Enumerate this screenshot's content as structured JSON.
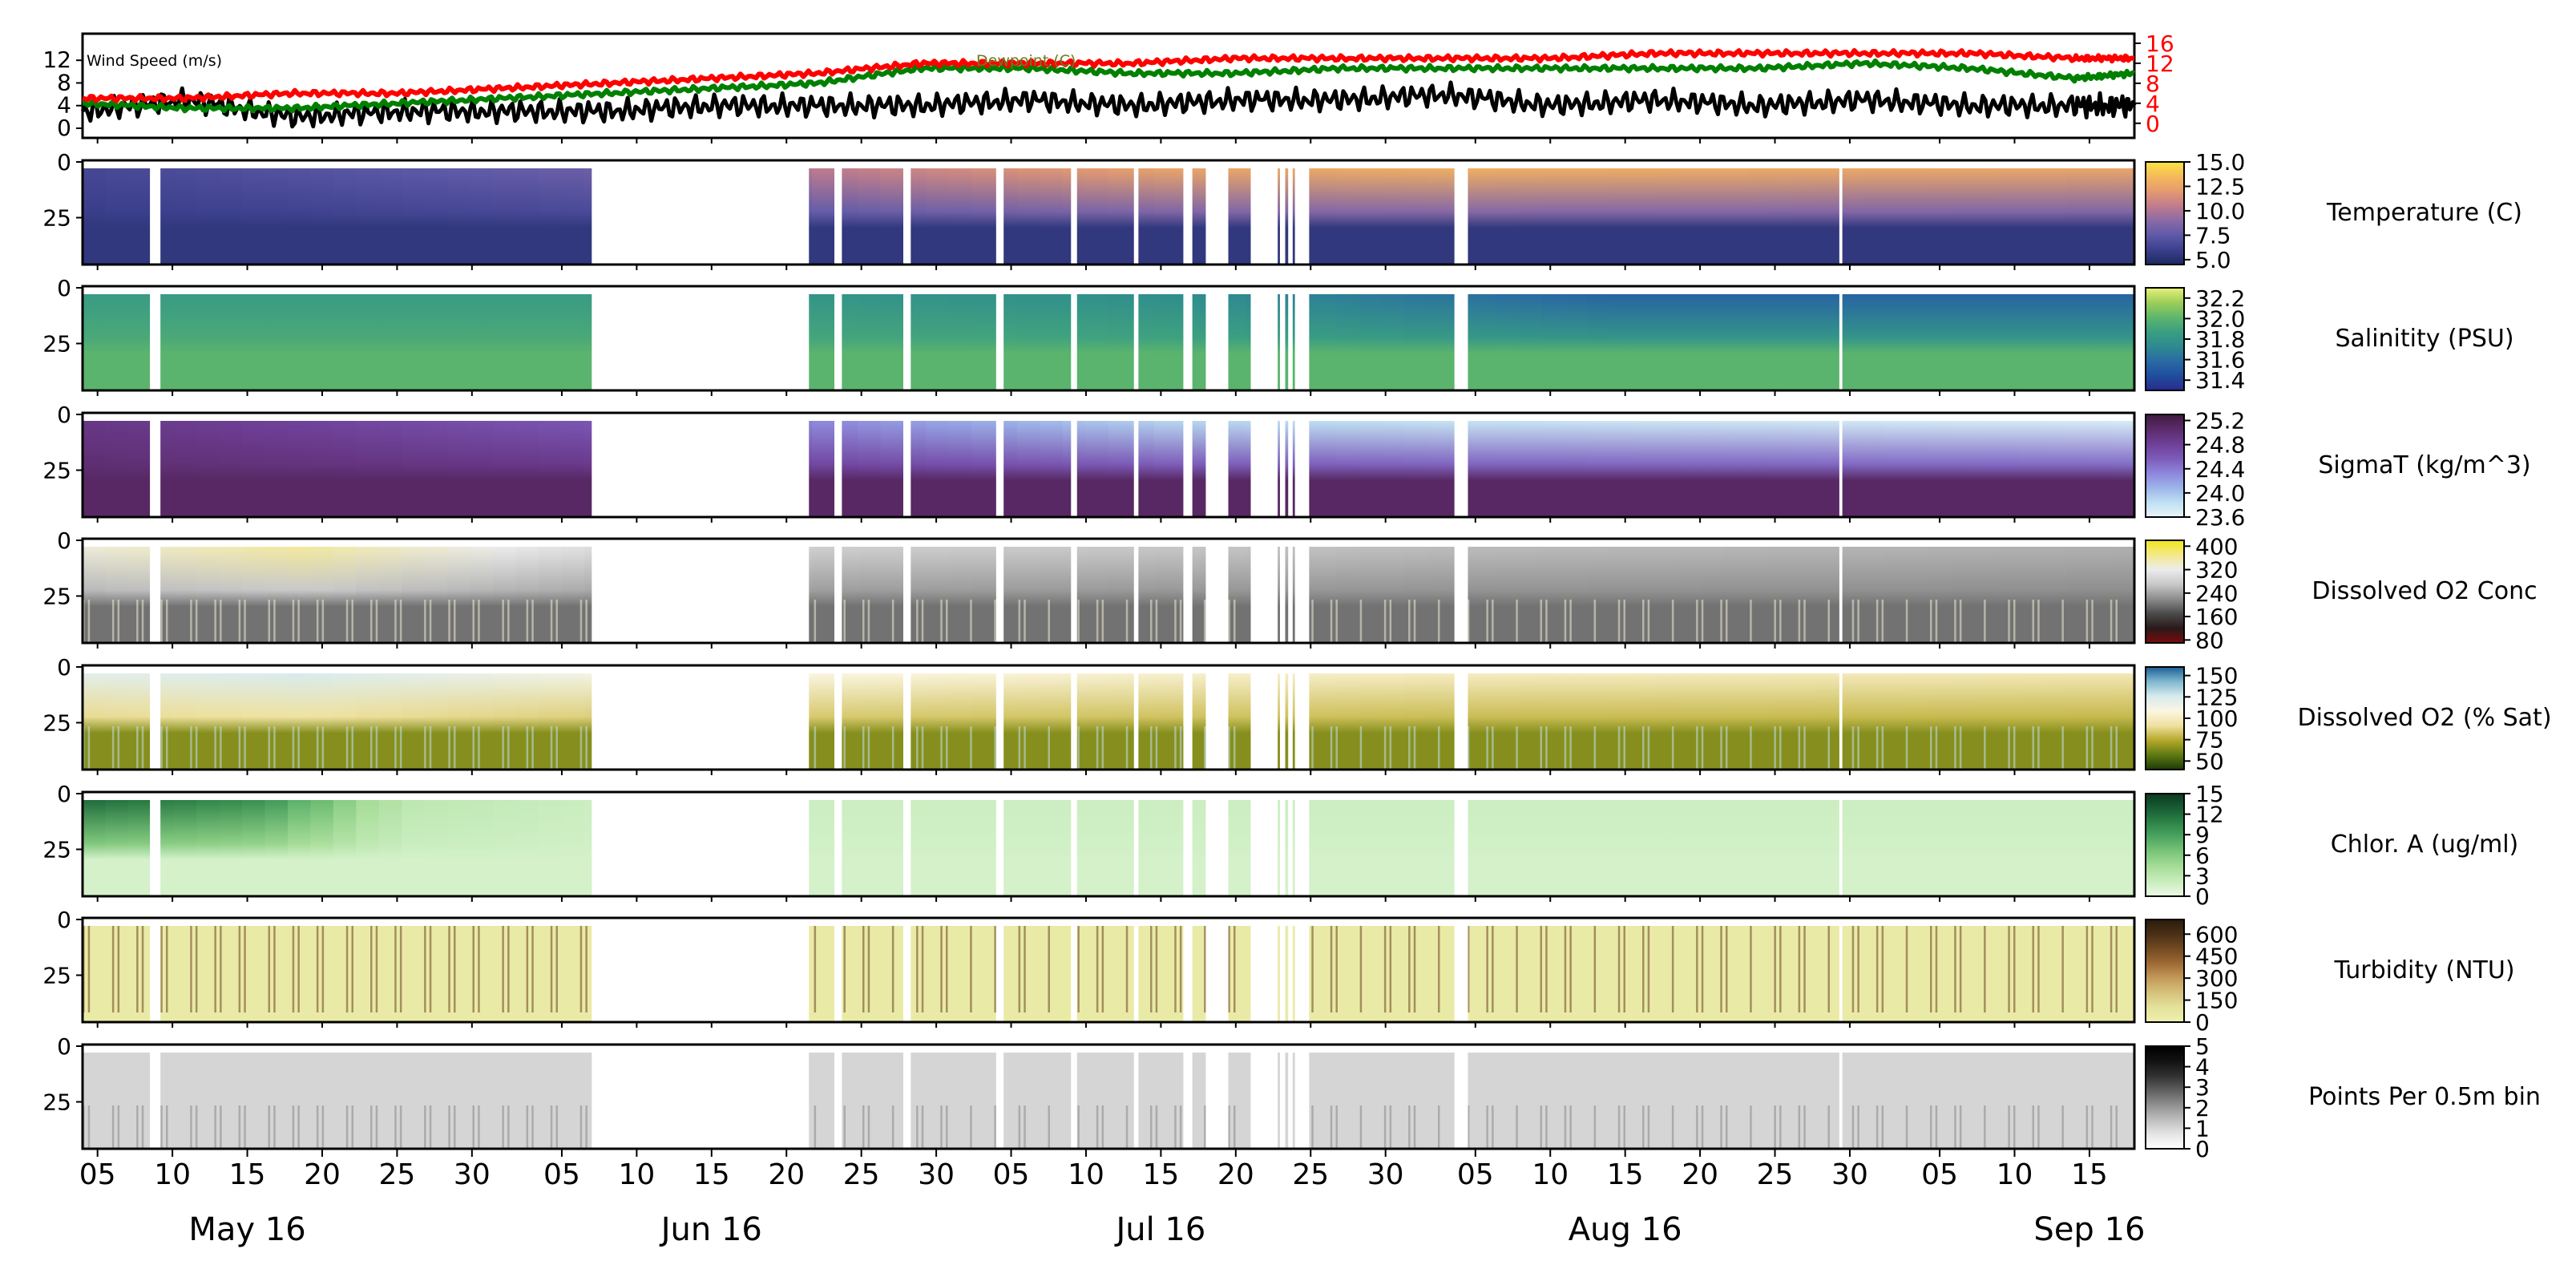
{
  "figure": {
    "date_ticks": [
      "05",
      "10",
      "15",
      "20",
      "25",
      "30",
      "05",
      "10",
      "15",
      "20",
      "25",
      "30",
      "05",
      "10",
      "15",
      "20",
      "25",
      "30",
      "05",
      "10",
      "15",
      "20",
      "25",
      "30",
      "05",
      "10",
      "15"
    ],
    "month_labels": [
      "May 16",
      "Jun 16",
      "Jul 16",
      "Aug 16",
      "Sep 16"
    ]
  },
  "chart_data": [
    {
      "type": "line",
      "title": "",
      "xlabel": "",
      "x_range": [
        "2016-05-04",
        "2016-09-18"
      ],
      "left_axis": {
        "ylim": [
          0,
          15
        ],
        "ticks": [
          "0",
          "4",
          "8",
          "12"
        ]
      },
      "right_axis": {
        "ylim": [
          -1,
          16
        ],
        "ticks": [
          "0",
          "4",
          "8",
          "12",
          "16"
        ],
        "color": "#ff0000"
      },
      "annotations": [
        "Wind Speed (m/s)",
        "Dewpoint (C)"
      ],
      "series": [
        {
          "name": "Wind Speed (m/s)",
          "color": "#000000",
          "axis": "left",
          "x": [
            "2016-05-04",
            "2016-05-11",
            "2016-05-18",
            "2016-05-25",
            "2016-06-01",
            "2016-06-08",
            "2016-06-15",
            "2016-06-22",
            "2016-06-29",
            "2016-07-06",
            "2016-07-13",
            "2016-07-20",
            "2016-07-27",
            "2016-08-03",
            "2016-08-10",
            "2016-08-17",
            "2016-08-24",
            "2016-08-31",
            "2016-09-07",
            "2016-09-14",
            "2016-09-18"
          ],
          "values": [
            3,
            5,
            2,
            3,
            3,
            3,
            4,
            4,
            4,
            5,
            4,
            5,
            5,
            6,
            4,
            5,
            4,
            5,
            4,
            4,
            4
          ]
        },
        {
          "name": "Dewpoint (C)",
          "color": "#008000",
          "axis": "right",
          "x": [
            "2016-05-04",
            "2016-05-11",
            "2016-05-18",
            "2016-05-25",
            "2016-06-01",
            "2016-06-08",
            "2016-06-15",
            "2016-06-22",
            "2016-06-29",
            "2016-07-06",
            "2016-07-13",
            "2016-07-20",
            "2016-07-27",
            "2016-08-03",
            "2016-08-10",
            "2016-08-17",
            "2016-08-24",
            "2016-08-31",
            "2016-09-07",
            "2016-09-14",
            "2016-09-18"
          ],
          "values": [
            4,
            3,
            3,
            4,
            5,
            6,
            7,
            8,
            11,
            11,
            10,
            10,
            11,
            11,
            11,
            11,
            11,
            12,
            11,
            9,
            10
          ]
        },
        {
          "name": "",
          "color": "#ff0000",
          "axis": "right",
          "x": [
            "2016-05-04",
            "2016-05-11",
            "2016-05-18",
            "2016-05-25",
            "2016-06-01",
            "2016-06-08",
            "2016-06-15",
            "2016-06-22",
            "2016-06-29",
            "2016-07-06",
            "2016-07-13",
            "2016-07-20",
            "2016-07-27",
            "2016-08-03",
            "2016-08-10",
            "2016-08-17",
            "2016-08-24",
            "2016-08-31",
            "2016-09-07",
            "2016-09-14",
            "2016-09-18"
          ],
          "values": [
            5,
            5,
            6,
            6,
            7,
            8,
            9,
            10,
            12,
            12,
            12,
            13,
            13,
            13,
            13,
            14,
            14,
            14,
            14,
            13,
            13
          ]
        }
      ]
    },
    {
      "type": "heatmap",
      "ylabel_side": "Temperature (C)",
      "colormap": "cividis-like (navy to yellow)",
      "colorbar": {
        "min": 4.5,
        "max": 15.0,
        "ticks": [
          "5.0",
          "7.5",
          "10.0",
          "12.5",
          "15.0"
        ]
      },
      "y_ticks": [
        "0",
        "25"
      ],
      "surface_value_by_time": {
        "x": [
          "2016-05-04",
          "2016-06-07",
          "2016-06-22",
          "2016-07-15",
          "2016-08-04",
          "2016-09-18"
        ],
        "values": [
          6.5,
          8,
          10.5,
          12.5,
          13,
          12.5
        ]
      },
      "bottom_value": 5.5
    },
    {
      "type": "heatmap",
      "ylabel_side": "Salinitity (PSU)",
      "colormap": "haline-like (navy to yellow)",
      "colorbar": {
        "min": 31.3,
        "max": 32.3,
        "ticks": [
          "31.4",
          "31.6",
          "31.8",
          "32.0",
          "32.2"
        ]
      },
      "y_ticks": [
        "0",
        "25"
      ],
      "surface_value_by_time": {
        "x": [
          "2016-05-04",
          "2016-06-07",
          "2016-06-22",
          "2016-07-15",
          "2016-08-14",
          "2016-09-18"
        ],
        "values": [
          31.85,
          31.85,
          31.8,
          31.75,
          31.55,
          31.55
        ]
      },
      "bottom_value": 32.0
    },
    {
      "type": "heatmap",
      "ylabel_side": "SigmaT (kg/m^3)",
      "colormap": "light blue to dark purple",
      "colorbar": {
        "min": 23.6,
        "max": 25.3,
        "ticks": [
          "23.6",
          "24.0",
          "24.4",
          "24.8",
          "25.2"
        ]
      },
      "y_ticks": [
        "0",
        "25"
      ],
      "surface_value_by_time": {
        "x": [
          "2016-05-04",
          "2016-06-07",
          "2016-06-22",
          "2016-07-15",
          "2016-08-04",
          "2016-09-18"
        ],
        "values": [
          24.9,
          24.6,
          24.3,
          23.9,
          23.8,
          23.7
        ]
      },
      "bottom_value": 25.1
    },
    {
      "type": "heatmap",
      "ylabel_side": "Dissolved O2 Conc",
      "colormap": "dark red / black / white / yellow",
      "colorbar": {
        "min": 70,
        "max": 420,
        "ticks": [
          "80",
          "160",
          "240",
          "320",
          "400"
        ]
      },
      "y_ticks": [
        "0",
        "25"
      ],
      "surface_value_by_time": {
        "x": [
          "2016-05-04",
          "2016-05-18",
          "2016-06-07",
          "2016-06-22",
          "2016-08-04",
          "2016-09-18"
        ],
        "values": [
          330,
          360,
          300,
          280,
          260,
          250
        ]
      },
      "bottom_value": 200
    },
    {
      "type": "heatmap",
      "ylabel_side": "Dissolved O2 (% Sat)",
      "colormap": "green / yellow / white / blue",
      "colorbar": {
        "min": 40,
        "max": 160,
        "ticks": [
          "50",
          "75",
          "100",
          "125",
          "150"
        ]
      },
      "y_ticks": [
        "0",
        "25"
      ],
      "surface_value_by_time": {
        "x": [
          "2016-05-04",
          "2016-05-18",
          "2016-06-07",
          "2016-06-22",
          "2016-08-04",
          "2016-09-18"
        ],
        "values": [
          120,
          125,
          112,
          108,
          100,
          97
        ]
      },
      "bottom_value": 65
    },
    {
      "type": "heatmap",
      "ylabel_side": "Chlor. A (ug/ml)",
      "colormap": "white to dark green",
      "colorbar": {
        "min": 0,
        "max": 15,
        "ticks": [
          "0",
          "3",
          "6",
          "9",
          "12",
          "15"
        ]
      },
      "y_ticks": [
        "0",
        "25"
      ],
      "surface_value_by_time": {
        "x": [
          "2016-05-04",
          "2016-05-15",
          "2016-05-25",
          "2016-06-07",
          "2016-06-22",
          "2016-09-18"
        ],
        "values": [
          12,
          10,
          3,
          2,
          2,
          2
        ]
      },
      "bottom_value": 1.5
    },
    {
      "type": "heatmap",
      "ylabel_side": "Turbidity (NTU)",
      "colormap": "pale yellow to dark brown",
      "colorbar": {
        "min": 0,
        "max": 700,
        "ticks": [
          "0",
          "150",
          "300",
          "450",
          "600"
        ]
      },
      "y_ticks": [
        "0",
        "25"
      ],
      "surface_value_by_time": {
        "x": [
          "2016-05-04",
          "2016-09-18"
        ],
        "values": [
          40,
          40
        ]
      },
      "bottom_value": 40
    },
    {
      "type": "heatmap",
      "ylabel_side": "Points Per 0.5m bin",
      "colormap": "white to black",
      "colorbar": {
        "min": 0,
        "max": 5,
        "ticks": [
          "0",
          "1",
          "2",
          "3",
          "4",
          "5"
        ]
      },
      "y_ticks": [
        "0",
        "25"
      ],
      "surface_value_by_time": {
        "x": [
          "2016-05-04",
          "2016-09-18"
        ],
        "values": [
          1,
          1
        ]
      },
      "bottom_value": 1
    }
  ]
}
